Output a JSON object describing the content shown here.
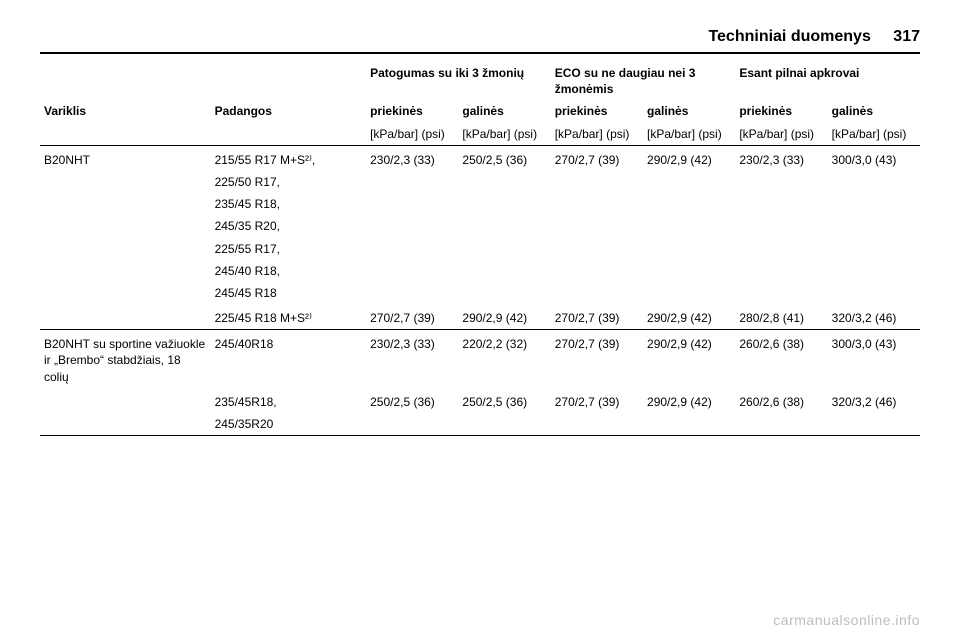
{
  "header": {
    "section_title": "Techniniai duomenys",
    "page_number": "317"
  },
  "col_headers": {
    "engine": "Variklis",
    "tyres": "Padangos",
    "comfort_group": "Patogumas su iki 3 žmonių",
    "eco_group": "ECO su ne daugiau nei 3 žmonėmis",
    "full_group": "Esant pilnai apkrovai",
    "front": "priekinės",
    "rear": "galinės",
    "unit": "[kPa/bar] (psi)"
  },
  "rows": [
    {
      "engine": "B20NHT",
      "tyre_lines": [
        "215/55 R17 M+S²⁾,",
        "225/50 R17,",
        "235/45 R18,",
        "245/35 R20,",
        "225/55 R17,",
        "245/40 R18,",
        "245/45 R18"
      ],
      "vals": {
        "comfort_front": "230/2,3 (33)",
        "comfort_rear": "250/2,5 (36)",
        "eco_front": "270/2,7 (39)",
        "eco_rear": "290/2,9 (42)",
        "full_front": "230/2,3 (33)",
        "full_rear": "300/3,0 (43)"
      }
    },
    {
      "engine": "",
      "tyre_lines": [
        "225/45 R18 M+S²⁾"
      ],
      "vals": {
        "comfort_front": "270/2,7 (39)",
        "comfort_rear": "290/2,9 (42)",
        "eco_front": "270/2,7 (39)",
        "eco_rear": "290/2,9 (42)",
        "full_front": "280/2,8 (41)",
        "full_rear": "320/3,2 (46)"
      }
    },
    {
      "engine": "B20NHT su sportine važiuokle ir „Brembo“ stabdžiais, 18 colių",
      "tyre_lines": [
        "245/40R18"
      ],
      "vals": {
        "comfort_front": "230/2,3 (33)",
        "comfort_rear": "220/2,2 (32)",
        "eco_front": "270/2,7 (39)",
        "eco_rear": "290/2,9 (42)",
        "full_front": "260/2,6 (38)",
        "full_rear": "300/3,0 (43)"
      }
    },
    {
      "engine": "",
      "tyre_lines": [
        "235/45R18,",
        "245/35R20"
      ],
      "vals": {
        "comfort_front": "250/2,5 (36)",
        "comfort_rear": "250/2,5 (36)",
        "eco_front": "270/2,7 (39)",
        "eco_rear": "290/2,9 (42)",
        "full_front": "260/2,6 (38)",
        "full_rear": "320/3,2 (46)"
      }
    }
  ],
  "watermark": "carmanualsonline.info"
}
